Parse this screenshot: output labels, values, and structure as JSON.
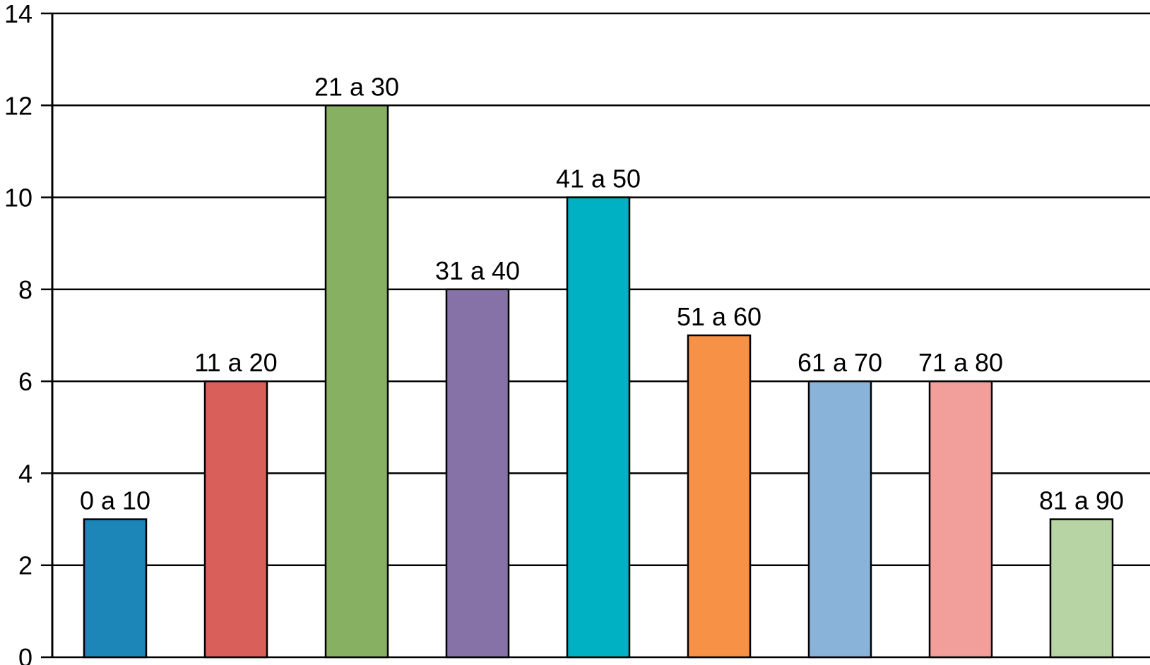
{
  "chart_data": {
    "type": "bar",
    "title": "",
    "xlabel": "",
    "ylabel": "",
    "categories": [
      "0 a 10",
      "11 a 20",
      "21 a 30",
      "31 a 40",
      "41 a 50",
      "51 a 60",
      "61 a 70",
      "71 a 80",
      "81 a 90"
    ],
    "values": [
      3,
      6,
      12,
      8,
      10,
      7,
      6,
      6,
      3
    ],
    "colors": [
      "#1c86b8",
      "#d95f5a",
      "#88b062",
      "#8672a6",
      "#00b1c4",
      "#f79146",
      "#89b3d8",
      "#f29e9b",
      "#b7d4a4"
    ],
    "ylim": [
      0,
      14
    ],
    "yticks": [
      "0",
      "2",
      "4",
      "6",
      "8",
      "10",
      "12",
      "14"
    ],
    "grid": true,
    "legend": "none",
    "bar_labels": "above each bar"
  }
}
